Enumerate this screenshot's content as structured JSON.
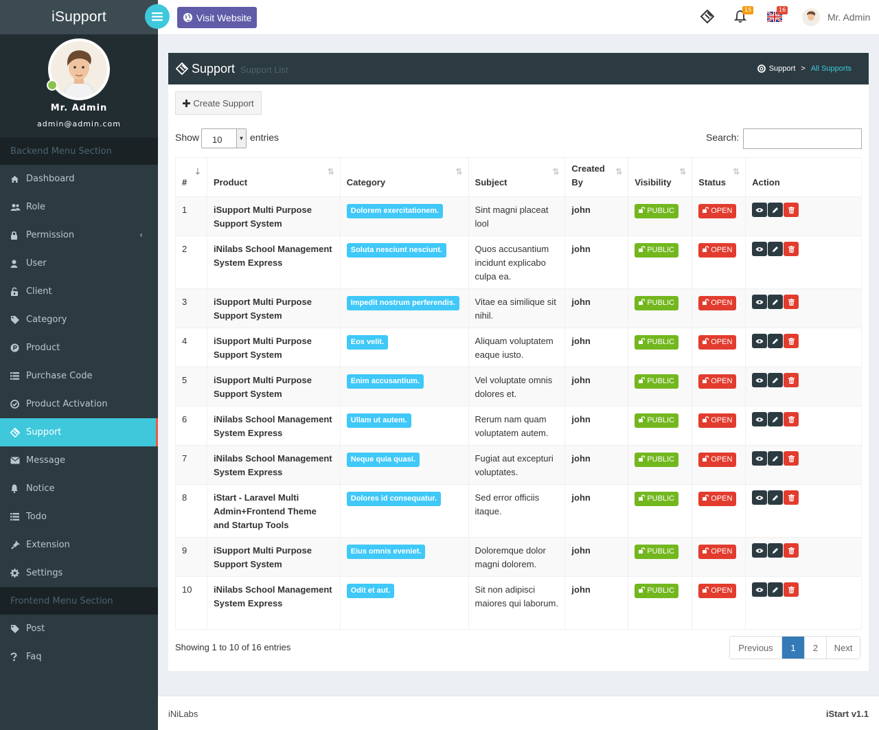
{
  "brand": "iSupport",
  "user": {
    "name": "Mr. Admin",
    "email": "admin@admin.com"
  },
  "topbar": {
    "visit_label": "Visit Website",
    "notif_count": "15",
    "lang_count": "16",
    "username": "Mr. Admin"
  },
  "sidebar": {
    "backend_header": "Backend Menu Section",
    "frontend_header": "Frontend Menu Section",
    "items": [
      {
        "label": "Dashboard",
        "icon": "dashboard-icon"
      },
      {
        "label": "Role",
        "icon": "users-icon"
      },
      {
        "label": "Permission",
        "icon": "lock-icon"
      },
      {
        "label": "User",
        "icon": "user-icon"
      },
      {
        "label": "Client",
        "icon": "briefcase-lock-icon"
      },
      {
        "label": "Category",
        "icon": "tags-icon"
      },
      {
        "label": "Product",
        "icon": "product-p-icon"
      },
      {
        "label": "Purchase Code",
        "icon": "list-icon"
      },
      {
        "label": "Product Activation",
        "icon": "check-circle-icon"
      },
      {
        "label": "Support",
        "icon": "ticket-icon"
      },
      {
        "label": "Message",
        "icon": "envelope-icon"
      },
      {
        "label": "Notice",
        "icon": "bell-icon"
      },
      {
        "label": "Todo",
        "icon": "list-icon"
      },
      {
        "label": "Extension",
        "icon": "plug-icon"
      },
      {
        "label": "Settings",
        "icon": "gear-icon"
      }
    ],
    "frontend_items": [
      {
        "label": "Post",
        "icon": "tags-icon"
      },
      {
        "label": "Faq",
        "icon": "question-icon"
      }
    ]
  },
  "page": {
    "title": "Support",
    "subtitle": "Support List",
    "breadcrumb": [
      "Support",
      "All Supports"
    ],
    "create_label": "Create Support",
    "show_label": "Show",
    "entries_label": "entries",
    "page_size": "10",
    "search_label": "Search:",
    "columns": [
      "#",
      "Product",
      "Category",
      "Subject",
      "Created By",
      "Visibility",
      "Status",
      "Action"
    ],
    "showing": "Showing 1 to 10 of 16 entries",
    "pager": {
      "prev": "Previous",
      "p1": "1",
      "p2": "2",
      "next": "Next"
    }
  },
  "rows": [
    {
      "n": "1",
      "product": "iSupport Multi Purpose Support System",
      "category": "Dolorem exercitationem.",
      "subject": "Sint magni placeat lool",
      "by": "john",
      "vis": "PUBLIC",
      "status": "OPEN"
    },
    {
      "n": "2",
      "product": "iNilabs School Management System Express",
      "category": "Soluta nesciunt nesciunt.",
      "subject": "Quos accusantium incidunt explicabo culpa ea.",
      "by": "john",
      "vis": "PUBLIC",
      "status": "OPEN"
    },
    {
      "n": "3",
      "product": "iSupport Multi Purpose Support System",
      "category": "Impedit nostrum perferendis.",
      "subject": "Vitae ea similique sit nihil.",
      "by": "john",
      "vis": "PUBLIC",
      "status": "OPEN"
    },
    {
      "n": "4",
      "product": "iSupport Multi Purpose Support System",
      "category": "Eos velit.",
      "subject": "Aliquam voluptatem eaque iusto.",
      "by": "john",
      "vis": "PUBLIC",
      "status": "OPEN"
    },
    {
      "n": "5",
      "product": "iSupport Multi Purpose Support System",
      "category": "Enim accusantium.",
      "subject": "Vel voluptate omnis dolores et.",
      "by": "john",
      "vis": "PUBLIC",
      "status": "OPEN"
    },
    {
      "n": "6",
      "product": "iNilabs School Management System Express",
      "category": "Ullam ut autem.",
      "subject": "Rerum nam quam voluptatem autem.",
      "by": "john",
      "vis": "PUBLIC",
      "status": "OPEN"
    },
    {
      "n": "7",
      "product": "iNilabs School Management System Express",
      "category": "Neque quia quasi.",
      "subject": "Fugiat aut excepturi voluptates.",
      "by": "john",
      "vis": "PUBLIC",
      "status": "OPEN"
    },
    {
      "n": "8",
      "product": "iStart - Laravel Multi Admin+Frontend Theme and Startup Tools",
      "category": "Dolores id consequatur.",
      "subject": "Sed error officiis itaque.",
      "by": "john",
      "vis": "PUBLIC",
      "status": "OPEN"
    },
    {
      "n": "9",
      "product": "iSupport Multi Purpose Support System",
      "category": "Eius omnis eveniet.",
      "subject": "Doloremque dolor magni dolorem.",
      "by": "john",
      "vis": "PUBLIC",
      "status": "OPEN"
    },
    {
      "n": "10",
      "product": "iNilabs School Management System Express",
      "category": "Odit et aut.",
      "subject": "Sit non adipisci maiores qui laborum.",
      "by": "john",
      "vis": "PUBLIC",
      "status": "OPEN"
    }
  ],
  "footer": {
    "left": "iNiLabs",
    "right_brand": "iStart",
    "right_version": "v1.1"
  },
  "colors": {
    "sidebar": "#2c3b41",
    "accent": "#3fc8dc",
    "purple": "#605ca8",
    "green": "#73b71f",
    "red": "#e23c2e",
    "info": "#3fc8f8"
  }
}
